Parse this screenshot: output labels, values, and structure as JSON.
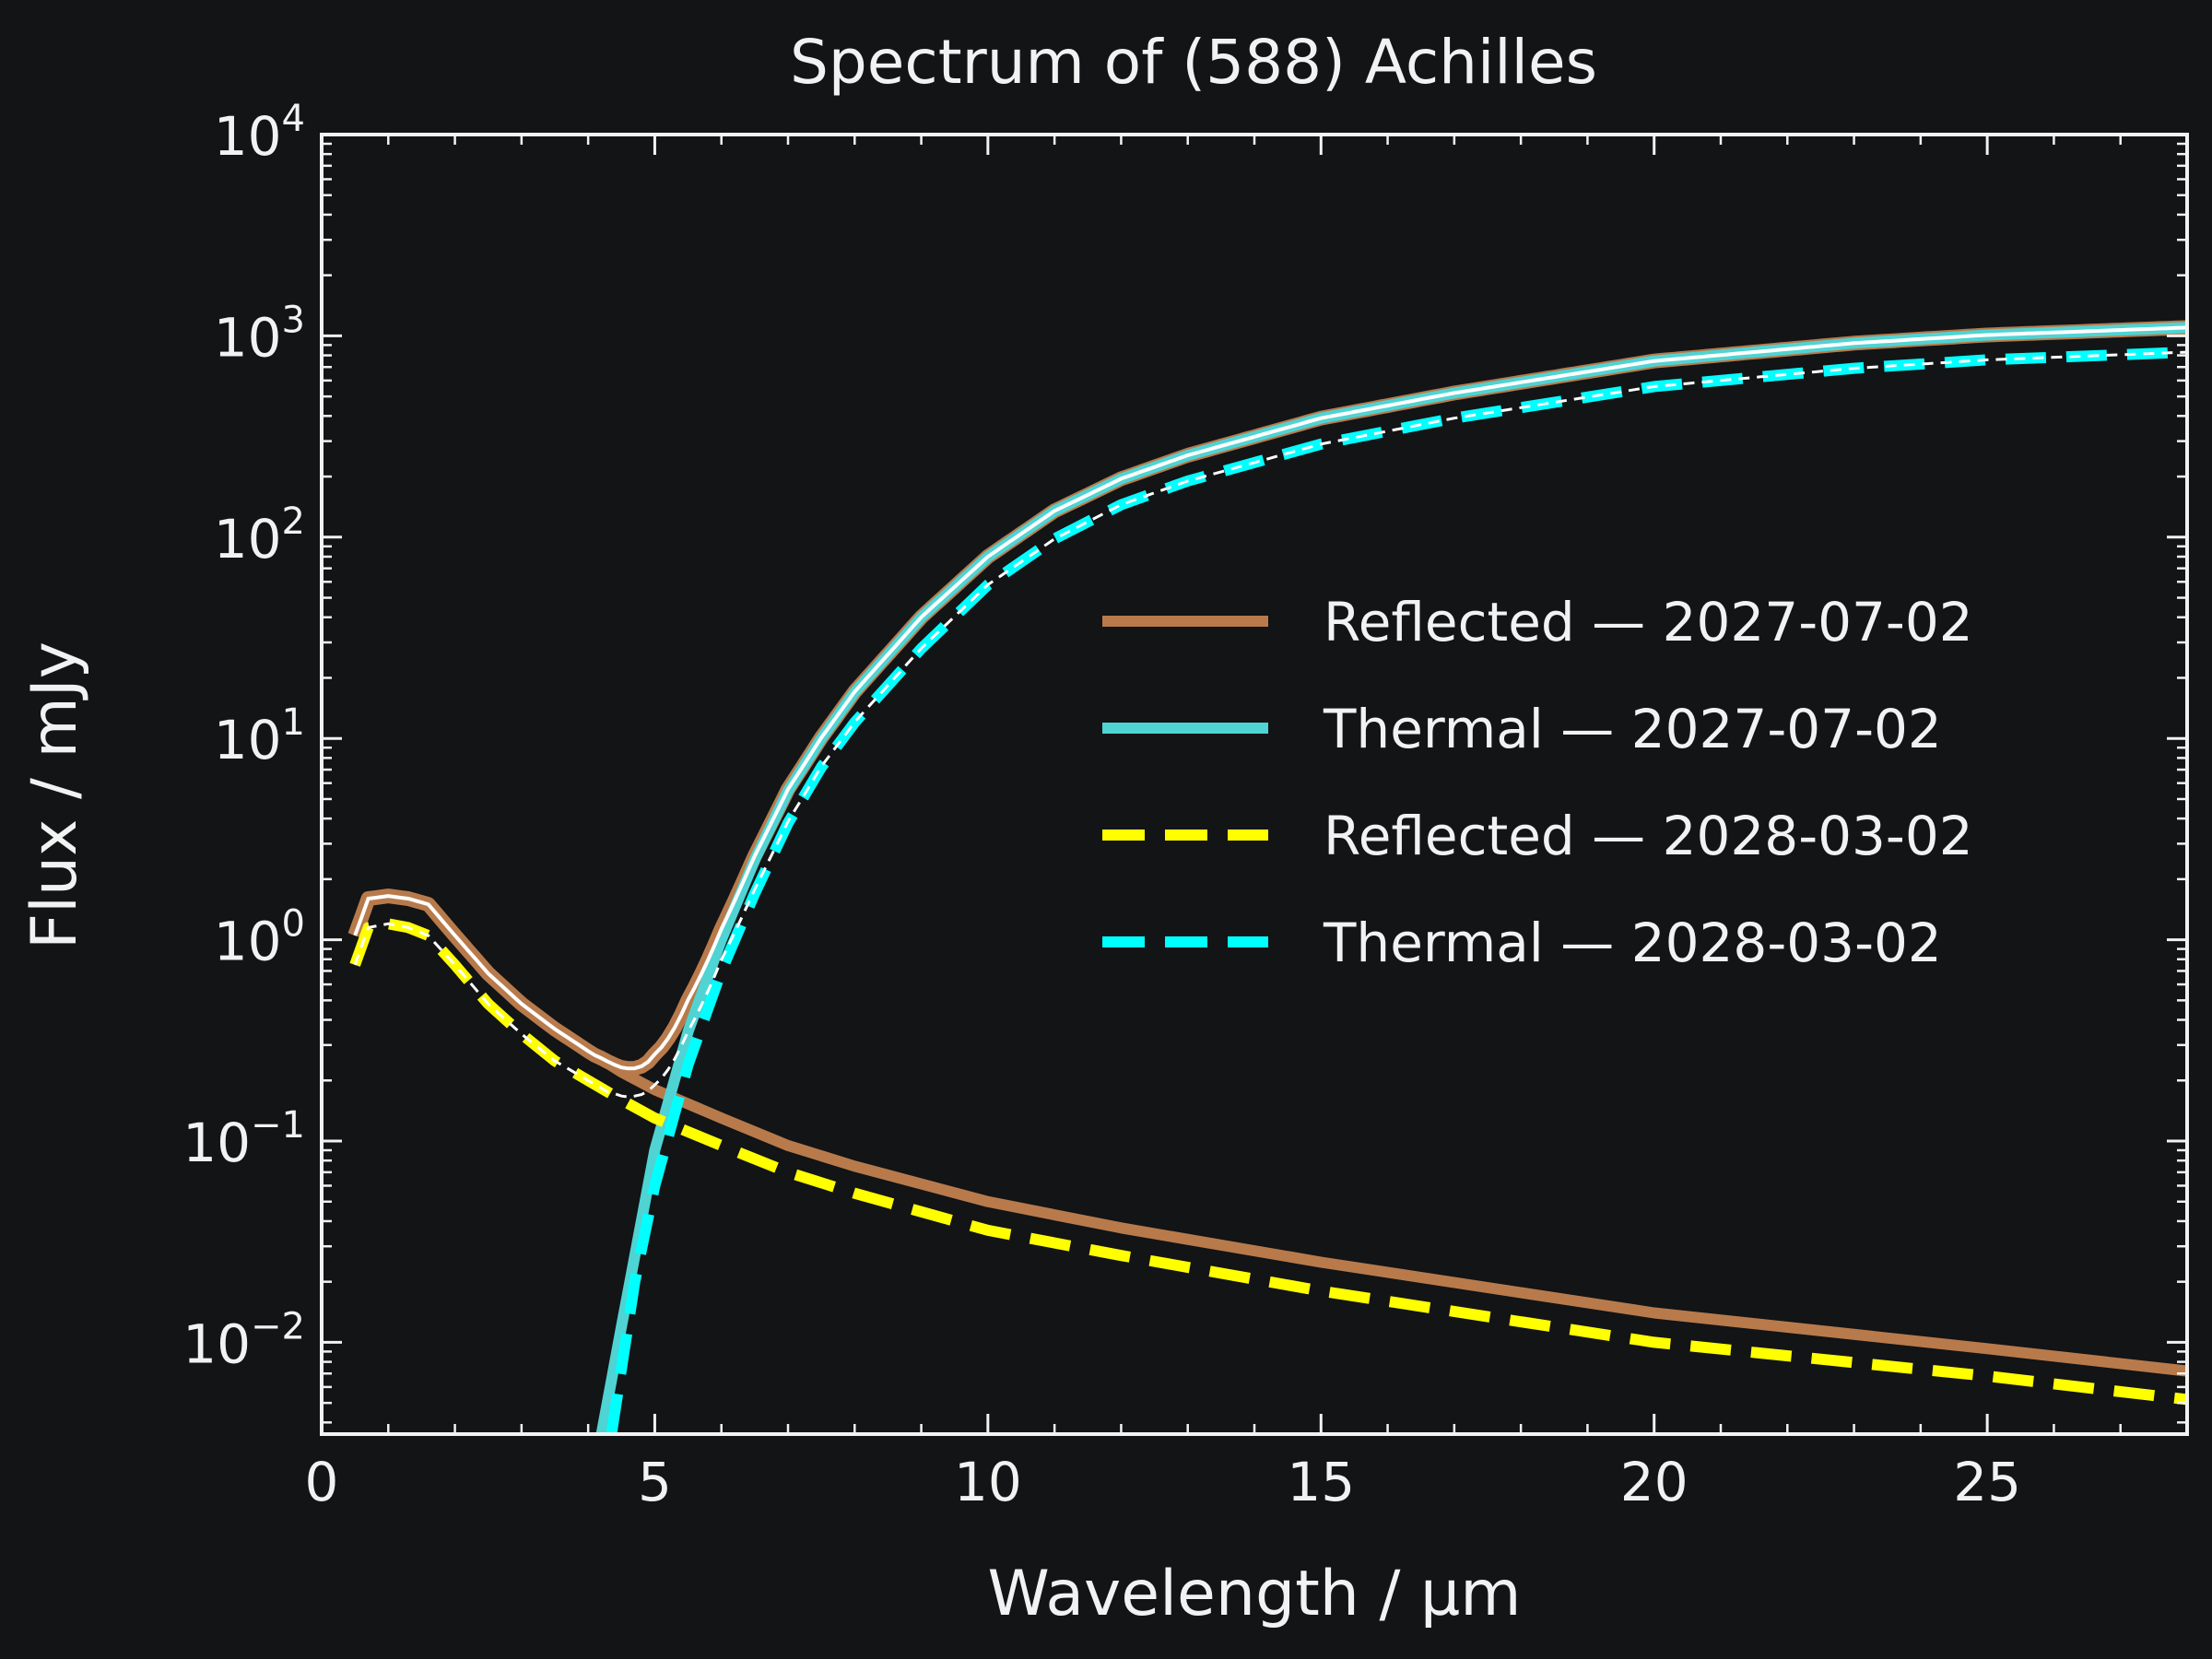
{
  "chart_data": {
    "type": "line",
    "title": "Spectrum of (588) Achilles",
    "xlabel": "Wavelength / µm",
    "ylabel": "Flux / mJy",
    "xlim": [
      0,
      28
    ],
    "ylim": [
      0.0035,
      10000
    ],
    "yscale": "log",
    "x_ticks": [
      0,
      5,
      10,
      15,
      20,
      25
    ],
    "x_tick_labels": [
      "0",
      "5",
      "10",
      "15",
      "20",
      "25"
    ],
    "y_ticks": [
      0.01,
      0.1,
      1,
      10,
      100,
      1000,
      10000
    ],
    "y_tick_labels": [
      {
        "base": "10",
        "exp": "−2"
      },
      {
        "base": "10",
        "exp": "−1"
      },
      {
        "base": "10",
        "exp": "0"
      },
      {
        "base": "10",
        "exp": "1"
      },
      {
        "base": "10",
        "exp": "2"
      },
      {
        "base": "10",
        "exp": "3"
      },
      {
        "base": "10",
        "exp": "4"
      }
    ],
    "legend_position": "right",
    "grid": false,
    "series": [
      {
        "name": "Reflected — 2027-07-02",
        "color": "#b87a4b",
        "style": "solid",
        "x": [
          0.5,
          0.7,
          1.0,
          1.3,
          1.6,
          2.0,
          2.5,
          3.0,
          3.5,
          4.0,
          4.5,
          5.0,
          6.0,
          7.0,
          8.0,
          10.0,
          12.0,
          15.0,
          20.0,
          25.0,
          28.0
        ],
        "y": [
          1.05,
          1.6,
          1.65,
          1.6,
          1.5,
          1.05,
          0.68,
          0.48,
          0.36,
          0.28,
          0.22,
          0.18,
          0.13,
          0.095,
          0.075,
          0.05,
          0.037,
          0.025,
          0.014,
          0.0093,
          0.0072
        ]
      },
      {
        "name": "Thermal — 2027-07-02",
        "color": "#4fd3d3",
        "style": "solid",
        "x": [
          4.2,
          4.5,
          5.0,
          5.5,
          6.0,
          6.5,
          7.0,
          7.5,
          8.0,
          9.0,
          10.0,
          11.0,
          12.0,
          13.0,
          15.0,
          17.0,
          20.0,
          23.0,
          25.0,
          28.0
        ],
        "y": [
          0.0035,
          0.012,
          0.09,
          0.35,
          1.0,
          2.5,
          5.5,
          10.0,
          17.0,
          40.0,
          80.0,
          135.0,
          195.0,
          255.0,
          390.0,
          520.0,
          750.0,
          920.0,
          1010.0,
          1100.0
        ]
      },
      {
        "name": "Reflected — 2028-03-02",
        "color": "#ffff00",
        "style": "dashed",
        "x": [
          0.5,
          0.7,
          1.0,
          1.3,
          1.6,
          2.0,
          2.5,
          3.0,
          3.5,
          4.0,
          4.5,
          5.0,
          6.0,
          7.0,
          8.0,
          10.0,
          12.0,
          15.0,
          20.0,
          25.0,
          28.0
        ],
        "y": [
          0.75,
          1.15,
          1.2,
          1.15,
          1.05,
          0.75,
          0.48,
          0.34,
          0.25,
          0.2,
          0.16,
          0.13,
          0.095,
          0.07,
          0.055,
          0.036,
          0.027,
          0.018,
          0.01,
          0.0068,
          0.0052
        ]
      },
      {
        "name": "Thermal — 2028-03-02",
        "color": "#00ffff",
        "style": "dashed",
        "x": [
          4.35,
          4.7,
          5.0,
          5.5,
          6.0,
          6.5,
          7.0,
          7.5,
          8.0,
          9.0,
          10.0,
          11.0,
          12.0,
          13.0,
          15.0,
          17.0,
          20.0,
          23.0,
          25.0,
          28.0
        ],
        "y": [
          0.0035,
          0.02,
          0.06,
          0.24,
          0.7,
          1.7,
          3.8,
          7.2,
          12.0,
          28.0,
          58.0,
          98.0,
          145.0,
          190.0,
          290.0,
          390.0,
          560.0,
          690.0,
          760.0,
          830.0
        ]
      }
    ]
  }
}
